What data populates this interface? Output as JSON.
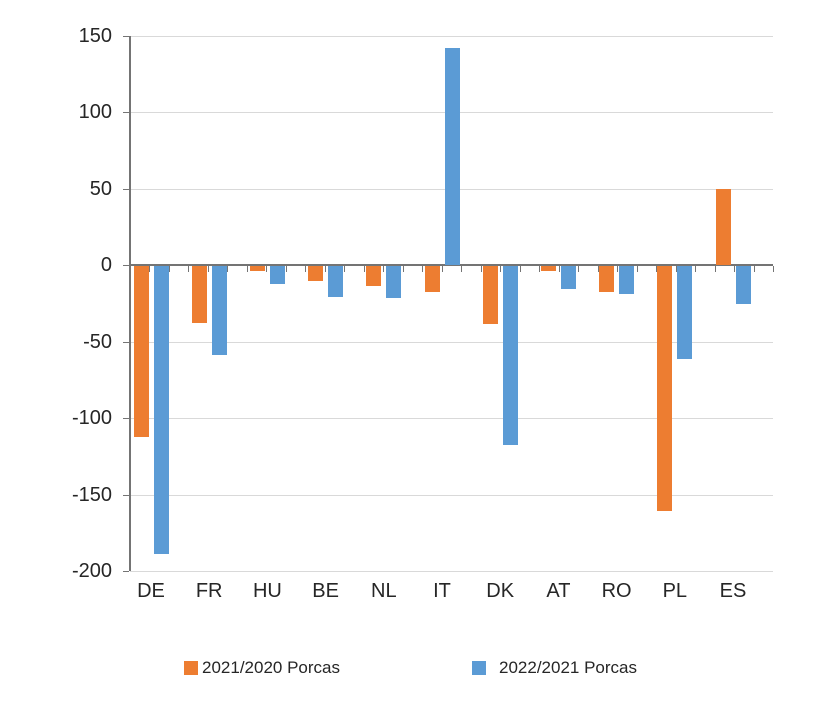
{
  "chart_data": {
    "type": "bar",
    "title": "",
    "categories": [
      "DE",
      "FR",
      "HU",
      "BE",
      "NL",
      "IT",
      "DK",
      "AT",
      "RO",
      "PL",
      "ES"
    ],
    "series": [
      {
        "name": "2021/2020 Porcas",
        "color": "#ED7D31",
        "values": [
          -112,
          -37,
          -3,
          -10,
          -13,
          -17,
          -38,
          -3,
          -17,
          -160,
          50
        ]
      },
      {
        "name": "2022/2021 Porcas",
        "color": "#5B9BD5",
        "values": [
          -188,
          -58,
          -12,
          -20,
          -21,
          142,
          -117,
          -15,
          -18,
          -61,
          -25
        ]
      }
    ],
    "ylim": [
      -200,
      150
    ],
    "yticks": [
      150,
      100,
      50,
      0,
      -50,
      -100,
      -150,
      -200
    ],
    "xlabel": "",
    "ylabel": "",
    "grid": "horizontal",
    "legend_position": "bottom",
    "colors": {
      "gridline": "#d9d9d9",
      "axis": "#747474",
      "text": "#262626",
      "background": "#ffffff"
    }
  }
}
